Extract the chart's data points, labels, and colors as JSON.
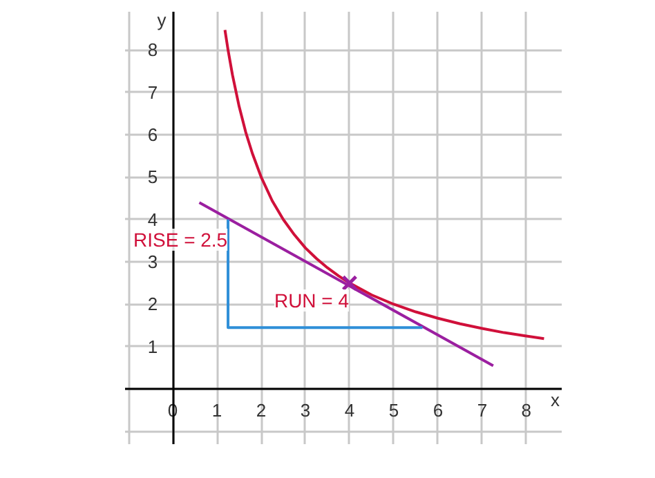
{
  "chart_data": {
    "type": "line",
    "xlabel": "x",
    "ylabel": "y",
    "xlim": [
      -1.08,
      8.8
    ],
    "ylim": [
      -1.3,
      8.9
    ],
    "xticks": [
      {
        "value": -1,
        "label": null
      },
      0,
      1,
      2,
      3,
      4,
      5,
      6,
      7,
      8
    ],
    "yticks": [
      {
        "value": -1,
        "label": null
      },
      {
        "value": 0,
        "label": null
      },
      1,
      2,
      3,
      4,
      5,
      6,
      7,
      8
    ],
    "grid": true,
    "series": [
      {
        "type": "line",
        "color": "#d0103a",
        "x": [
          1.18,
          1.25,
          1.35,
          1.5,
          1.65,
          1.8,
          2.0,
          2.25,
          2.5,
          2.75,
          3.0,
          3.25,
          3.5,
          3.75,
          4.0,
          4.5,
          5.0,
          5.5,
          6.0,
          6.5,
          7.0,
          7.5,
          8.0,
          8.4
        ],
        "values": [
          8.47,
          8.0,
          7.41,
          6.67,
          6.06,
          5.56,
          5.0,
          4.44,
          4.0,
          3.64,
          3.33,
          3.08,
          2.86,
          2.67,
          2.5,
          2.22,
          2.0,
          1.82,
          1.67,
          1.54,
          1.43,
          1.33,
          1.25,
          1.19
        ]
      },
      {
        "type": "line",
        "color": "#9b1fa0",
        "x": [
          0.6,
          7.25
        ],
        "values": [
          4.4,
          0.55
        ]
      },
      {
        "type": "line",
        "color": "#2f8fd8",
        "x": [
          1.25,
          1.25,
          5.65
        ],
        "values": [
          4.0,
          1.45,
          1.45
        ]
      },
      {
        "type": "scatter",
        "marker": "cross",
        "color": "#9b1fa0",
        "x": [
          4
        ],
        "values": [
          2.5
        ]
      }
    ],
    "annotations": [
      "RISE = 2.5",
      "RUN = 4"
    ]
  }
}
